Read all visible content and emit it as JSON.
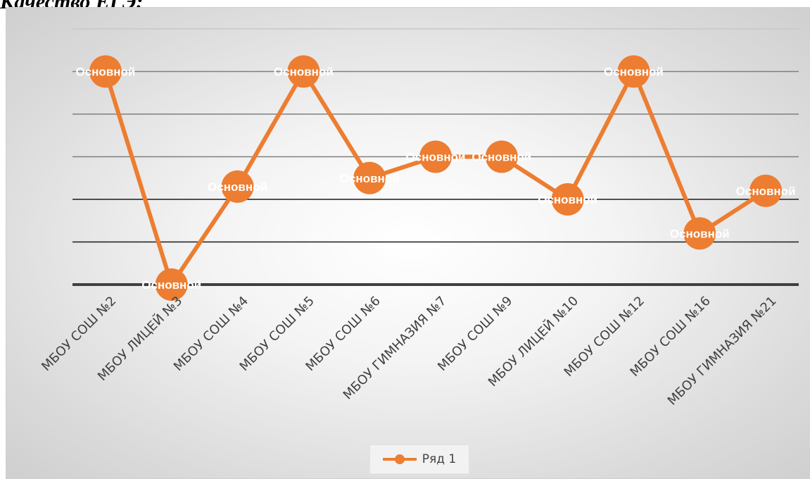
{
  "heading": "Качество ЕГЭ:",
  "colors": {
    "series": "#ED7D31",
    "gridline": "#7f7f7f",
    "axis": "#404040"
  },
  "chart_data": {
    "type": "line",
    "title": "",
    "xlabel": "",
    "ylabel": "",
    "categories": [
      "МБОУ СОШ №2",
      "МБОУ ЛИЦЕЙ №3",
      "МБОУ СОШ №4",
      "МБОУ СОШ №5",
      "МБОУ СОШ №6",
      "МБОУ ГИМНАЗИЯ №7",
      "МБОУ СОШ №9",
      "МБОУ ЛИЦЕЙ №10",
      "МБОУ СОШ №12",
      "МБОУ СОШ №16",
      "МБОУ ГИМНАЗИЯ №21"
    ],
    "series": [
      {
        "name": "Ряд 1",
        "values": [
          5,
          0,
          2.3,
          5,
          2.5,
          3,
          3,
          2,
          5,
          1.2,
          2.2
        ],
        "data_labels": [
          "Основной",
          "Основной",
          "Основной",
          "Основной",
          "Основной",
          "Основной",
          "Основной",
          "Основной",
          "Основной",
          "Основной",
          "Основной"
        ]
      }
    ],
    "ylim": [
      0,
      6
    ],
    "grid": true,
    "y_tick_labels_shown": false,
    "legend": "bottom"
  }
}
